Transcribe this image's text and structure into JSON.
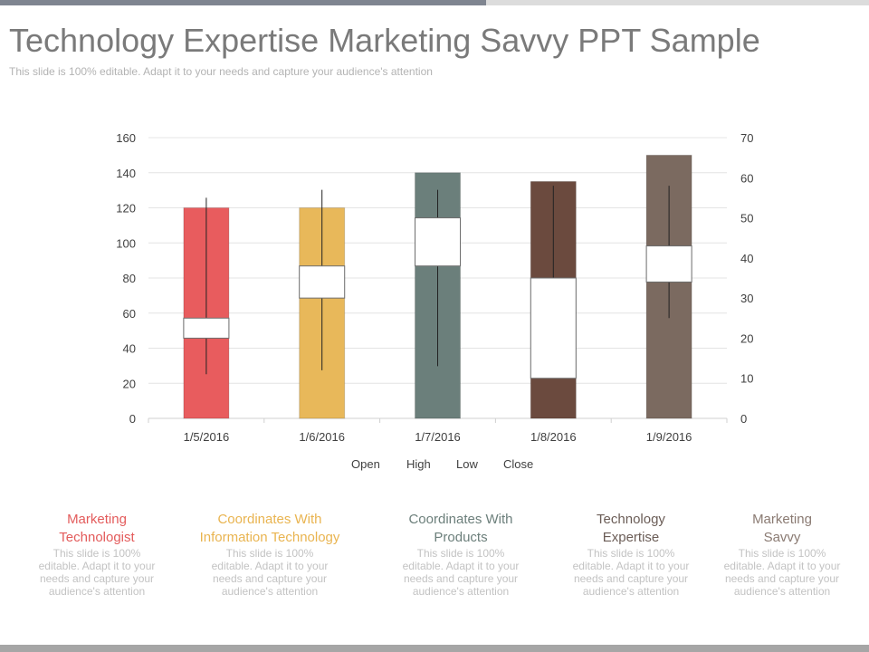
{
  "header": {
    "title": "Technology Expertise Marketing Savvy PPT Sample",
    "subtitle": "This slide is 100% editable. Adapt it to your needs and capture your audience's attention"
  },
  "colors": {
    "series": [
      "#e85c5e",
      "#e8b85a",
      "#6b7f7b",
      "#6b4a3e",
      "#7b6a60"
    ],
    "head_colors": [
      "#e35b5b",
      "#e9b450",
      "#6c7f7b",
      "#6b5d57",
      "#8a7a72"
    ],
    "grid": "#e4e4e4",
    "axis_text": "#404040"
  },
  "chart_data": {
    "type": "candlestick",
    "categories": [
      "1/5/2016",
      "1/6/2016",
      "1/7/2016",
      "1/8/2016",
      "1/9/2016"
    ],
    "volume": [
      120,
      120,
      140,
      135,
      150
    ],
    "open": [
      25,
      38,
      50,
      35,
      43
    ],
    "high": [
      55,
      57,
      57,
      58,
      58
    ],
    "low": [
      11,
      12,
      13,
      10,
      25
    ],
    "close": [
      20,
      30,
      38,
      10,
      34
    ],
    "y_left": {
      "min": 0,
      "max": 160,
      "ticks": [
        0,
        20,
        40,
        60,
        80,
        100,
        120,
        140,
        160
      ]
    },
    "y_right": {
      "min": 0,
      "max": 70,
      "ticks": [
        0,
        10,
        20,
        30,
        40,
        50,
        60,
        70
      ]
    },
    "legend": [
      "Open",
      "High",
      "Low",
      "Close"
    ],
    "grid": true,
    "legend_position": "bottom"
  },
  "descriptions": [
    {
      "title_lines": [
        "Marketing",
        "Technologist"
      ],
      "body_lines": [
        "This slide is 100%",
        "editable. Adapt it to your",
        "needs and capture your",
        "audience's attention"
      ]
    },
    {
      "title_lines": [
        "Coordinates With",
        "Information  Technology"
      ],
      "body_lines": [
        "This slide is 100%",
        "editable. Adapt it to your",
        "needs and capture your",
        "audience's attention"
      ]
    },
    {
      "title_lines": [
        "Coordinates With",
        "Products"
      ],
      "body_lines": [
        "This slide is 100%",
        "editable. Adapt it to your",
        "needs and capture your",
        "audience's attention"
      ]
    },
    {
      "title_lines": [
        "Technology",
        "Expertise"
      ],
      "body_lines": [
        "This slide is 100%",
        "editable. Adapt it to your",
        "needs and capture your",
        "audience's attention"
      ]
    },
    {
      "title_lines": [
        "Marketing",
        "Savvy"
      ],
      "body_lines": [
        "This slide is 100%",
        "editable. Adapt it to your",
        "needs and capture your",
        "audience's attention"
      ]
    }
  ]
}
